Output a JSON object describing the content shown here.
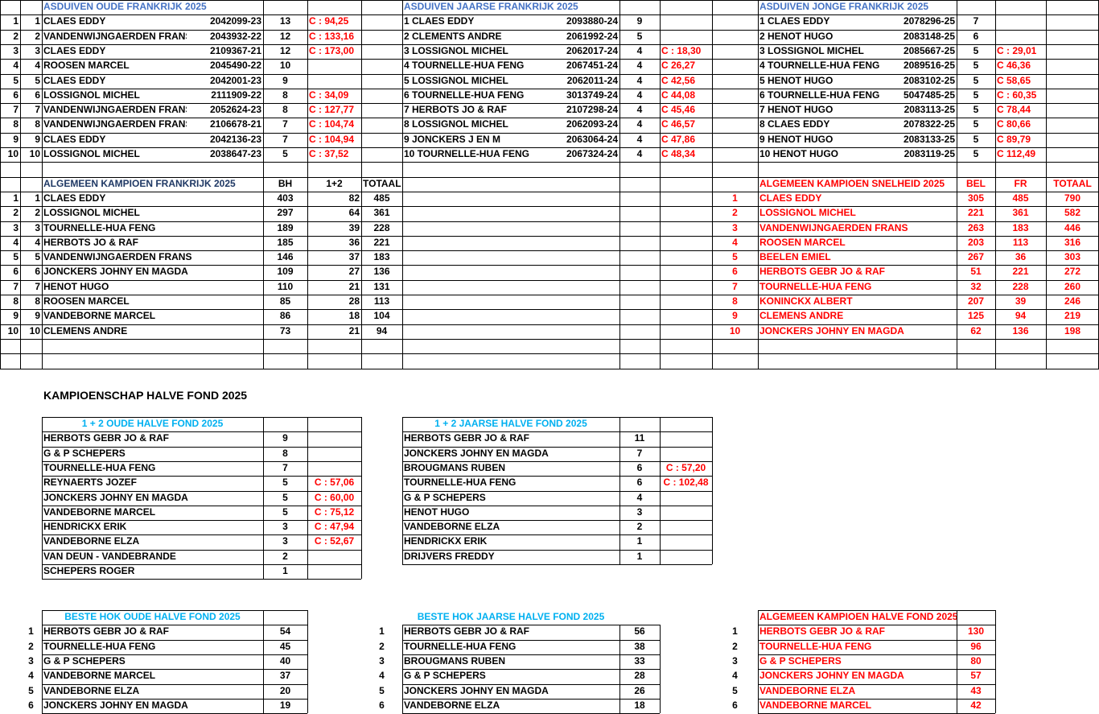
{
  "top": {
    "oude": {
      "title": "ASDUIVEN OUDE FRANKRIJK  2025",
      "rows": [
        {
          "i": "1",
          "r": "1",
          "name": "CLAES  EDDY",
          "ring": "2042099-23",
          "n": "13",
          "c": "C :   94,25"
        },
        {
          "i": "2",
          "r": "2",
          "name": "VANDENWIJNGAERDEN FRANS",
          "ring": "2043932-22",
          "n": "12",
          "c": "C : 133,16"
        },
        {
          "i": "3",
          "r": "3",
          "name": "CLAES  EDDY",
          "ring": "2109367-21",
          "n": "12",
          "c": "C : 173,00"
        },
        {
          "i": "4",
          "r": "4",
          "name": "ROOSEN MARCEL",
          "ring": "2045490-22",
          "n": "10",
          "c": ""
        },
        {
          "i": "5",
          "r": "5",
          "name": "CLAES  EDDY",
          "ring": "2042001-23",
          "n": "9",
          "c": ""
        },
        {
          "i": "6",
          "r": "6",
          "name": "LOSSIGNOL MICHEL",
          "ring": "2111909-22",
          "n": "8",
          "c": "C :   34,09"
        },
        {
          "i": "7",
          "r": "7",
          "name": "VANDENWIJNGAERDEN FRANS",
          "ring": "2052624-23",
          "n": "8",
          "c": "C : 127,77"
        },
        {
          "i": "8",
          "r": "8",
          "name": "VANDENWIJNGAERDEN FRANS",
          "ring": "2106678-21",
          "n": "7",
          "c": "C : 104,74"
        },
        {
          "i": "9",
          "r": "9",
          "name": "CLAES  EDDY",
          "ring": "2042136-23",
          "n": "7",
          "c": "C : 104,94"
        },
        {
          "i": "10",
          "r": "10",
          "name": "LOSSIGNOL MICHEL",
          "ring": "2038647-23",
          "n": "5",
          "c": "C :  37,52"
        }
      ]
    },
    "jaarse": {
      "title": "ASDUIVEN JAARSE FRANKRIJK  2025",
      "rows": [
        {
          "name": "1 CLAES  EDDY",
          "ring": "2093880-24",
          "n": "9",
          "c": ""
        },
        {
          "name": "2 CLEMENTS ANDRE",
          "ring": "2061992-24",
          "n": "5",
          "c": ""
        },
        {
          "name": "3 LOSSIGNOL MICHEL",
          "ring": "2062017-24",
          "n": "4",
          "c": "C : 18,30"
        },
        {
          "name": "4 TOURNELLE-HUA FENG",
          "ring": "2067451-24",
          "n": "4",
          "c": "C  26,27"
        },
        {
          "name": "5 LOSSIGNOL MICHEL",
          "ring": "2062011-24",
          "n": "4",
          "c": "C   42,56"
        },
        {
          "name": "6 TOURNELLE-HUA FENG",
          "ring": "3013749-24",
          "n": "4",
          "c": "C  44,08"
        },
        {
          "name": "7 HERBOTS JO &  RAF",
          "ring": "2107298-24",
          "n": "4",
          "c": "C  45,46"
        },
        {
          "name": "8 LOSSIGNOL MICHEL",
          "ring": "2062093-24",
          "n": "4",
          "c": "C  46,57"
        },
        {
          "name": "9 JONCKERS J EN M",
          "ring": "2063064-24",
          "n": "4",
          "c": "C  47,86"
        },
        {
          "name": "10 TOURNELLE-HUA FENG",
          "ring": "2067324-24",
          "n": "4",
          "c": "C  48,34"
        }
      ]
    },
    "jonge": {
      "title": "ASDUIVEN JONGE FRANKRIJK  2025",
      "rows": [
        {
          "name": "1 CLAES  EDDY",
          "ring": "2078296-25",
          "n": "7",
          "c": ""
        },
        {
          "name": "2 HENOT  HUGO",
          "ring": "2083148-25",
          "n": "6",
          "c": ""
        },
        {
          "name": "3 LOSSIGNOL MICHEL",
          "ring": "2085667-25",
          "n": "5",
          "c": "C :  29,01"
        },
        {
          "name": "4 TOURNELLE-HUA FENG",
          "ring": "2089516-25",
          "n": "5",
          "c": "C   46,36"
        },
        {
          "name": "5 HENOT  HUGO",
          "ring": "2083102-25",
          "n": "5",
          "c": "C    58,65"
        },
        {
          "name": "6 TOURNELLE-HUA FENG",
          "ring": "5047485-25",
          "n": "5",
          "c": "C : 60,35"
        },
        {
          "name": "7 HENOT  HUGO",
          "ring": "2083113-25",
          "n": "5",
          "c": "C    78,44"
        },
        {
          "name": "8 CLAES  EDDY",
          "ring": "2078322-25",
          "n": "5",
          "c": "C   80,66"
        },
        {
          "name": "9 HENOT  HUGO",
          "ring": "2083133-25",
          "n": "5",
          "c": "C    89,79"
        },
        {
          "name": "10 HENOT  HUGO",
          "ring": "2083119-25",
          "n": "5",
          "c": "C  112,49"
        }
      ]
    },
    "alg_frankrijk": {
      "title": "ALGEMEEN KAMPIOEN FRANKRIJK  2025",
      "h_bh": "BH",
      "h_12": "1+2",
      "h_totaal": "TOTAAL",
      "rows": [
        {
          "i": "1",
          "r": "1",
          "name": "CLAES  EDDY",
          "bh": "403",
          "p12": "82",
          "tot": "485"
        },
        {
          "i": "2",
          "r": "2",
          "name": "LOSSIGNOL MICHEL",
          "bh": "297",
          "p12": "64",
          "tot": "361"
        },
        {
          "i": "3",
          "r": "3",
          "name": "TOURNELLE-HUA FENG",
          "bh": "189",
          "p12": "39",
          "tot": "228"
        },
        {
          "i": "4",
          "r": "4",
          "name": "HERBOTS JO & RAF",
          "bh": "185",
          "p12": "36",
          "tot": "221"
        },
        {
          "i": "5",
          "r": "5",
          "name": "VANDENWIJNGAERDEN FRANS",
          "bh": "146",
          "p12": "37",
          "tot": "183"
        },
        {
          "i": "6",
          "r": "6",
          "name": "JONCKERS JOHNY EN MAGDA",
          "bh": "109",
          "p12": "27",
          "tot": "136"
        },
        {
          "i": "7",
          "r": "7",
          "name": "HENOT HUGO",
          "bh": "110",
          "p12": "21",
          "tot": "131"
        },
        {
          "i": "8",
          "r": "8",
          "name": "ROOSEN MARCEL",
          "bh": "85",
          "p12": "28",
          "tot": "113"
        },
        {
          "i": "9",
          "r": "9",
          "name": "VANDEBORNE MARCEL",
          "bh": "86",
          "p12": "18",
          "tot": "104"
        },
        {
          "i": "10",
          "r": "10",
          "name": "CLEMENS ANDRE",
          "bh": "73",
          "p12": "21",
          "tot": "94"
        }
      ]
    },
    "alg_snelheid": {
      "title": "ALGEMEEN KAMPIOEN SNELHEID 2025",
      "h_bel": "BEL",
      "h_fr": "FR",
      "h_totaal": "TOTAAL",
      "rows": [
        {
          "r": "1",
          "name": "CLAES  EDDY",
          "bel": "305",
          "fr": "485",
          "tot": "790"
        },
        {
          "r": "2",
          "name": "LOSSIGNOL MICHEL",
          "bel": "221",
          "fr": "361",
          "tot": "582"
        },
        {
          "r": "3",
          "name": "VANDENWIJNGAERDEN FRANS",
          "bel": "263",
          "fr": "183",
          "tot": "446"
        },
        {
          "r": "4",
          "name": "ROOSEN MARCEL",
          "bel": "203",
          "fr": "113",
          "tot": "316"
        },
        {
          "r": "5",
          "name": "BEELEN EMIEL",
          "bel": "267",
          "fr": "36",
          "tot": "303"
        },
        {
          "r": "6",
          "name": "HERBOTS GEBR JO & RAF",
          "bel": "51",
          "fr": "221",
          "tot": "272"
        },
        {
          "r": "7",
          "name": "TOURNELLE-HUA FENG",
          "bel": "32",
          "fr": "228",
          "tot": "260"
        },
        {
          "r": "8",
          "name": "KONINCKX ALBERT",
          "bel": "207",
          "fr": "39",
          "tot": "246"
        },
        {
          "r": "9",
          "name": "CLEMENS ANDRE",
          "bel": "125",
          "fr": "94",
          "tot": "219"
        },
        {
          "r": "10",
          "name": "JONCKERS JOHNY EN MAGDA",
          "bel": "62",
          "fr": "136",
          "tot": "198"
        }
      ]
    }
  },
  "section_title": "KAMPIOENSCHAP HALVE FOND 2025",
  "oude_hf": {
    "title": "1 + 2 OUDE HALVE FOND  2025",
    "rows": [
      {
        "name": "HERBOTS GEBR  JO & RAF",
        "n": "9",
        "c": ""
      },
      {
        "name": "G & P SCHEPERS",
        "n": "8",
        "c": ""
      },
      {
        "name": "TOURNELLE-HUA FENG",
        "n": "7",
        "c": ""
      },
      {
        "name": "REYNAERTS JOZEF",
        "n": "5",
        "c": "C : 57,06"
      },
      {
        "name": "JONCKERS JOHNY EN MAGDA",
        "n": "5",
        "c": "C : 60,00"
      },
      {
        "name": "VANDEBORNE MARCEL",
        "n": "5",
        "c": "C : 75,12"
      },
      {
        "name": "HENDRICKX ERIK",
        "n": "3",
        "c": "C : 47,94"
      },
      {
        "name": "VANDEBORNE ELZA",
        "n": "3",
        "c": "C : 52,67"
      },
      {
        "name": "VAN DEUN - VANDEBRANDE",
        "n": "2",
        "c": ""
      },
      {
        "name": "SCHEPERS ROGER",
        "n": "1",
        "c": ""
      }
    ]
  },
  "jaarse_hf": {
    "title": "1 + 2 JAARSE HALVE FOND 2025",
    "rows": [
      {
        "name": "HERBOTS GEBR  JO & RAF",
        "n": "11",
        "c": ""
      },
      {
        "name": "JONCKERS JOHNY EN MAGDA",
        "n": "7",
        "c": ""
      },
      {
        "name": "BROUGMANS RUBEN",
        "n": "6",
        "c": "C : 57,20"
      },
      {
        "name": "TOURNELLE-HUA FENG",
        "n": "6",
        "c": "C : 102,48"
      },
      {
        "name": "G & P SCHEPERS",
        "n": "4",
        "c": ""
      },
      {
        "name": "HENOT HUGO",
        "n": "3",
        "c": ""
      },
      {
        "name": "VANDEBORNE ELZA",
        "n": "2",
        "c": ""
      },
      {
        "name": "HENDRICKX ERIK",
        "n": "1",
        "c": ""
      },
      {
        "name": "DRIJVERS FREDDY",
        "n": "1",
        "c": ""
      }
    ]
  },
  "hok_oude": {
    "title": "BESTE HOK OUDE HALVE FOND 2025",
    "rows": [
      {
        "r": "1",
        "name": "HERBOTS GEBR  JO & RAF",
        "n": "54"
      },
      {
        "r": "2",
        "name": "TOURNELLE-HUA FENG",
        "n": "45"
      },
      {
        "r": "3",
        "name": "G & P SCHEPERS",
        "n": "40"
      },
      {
        "r": "4",
        "name": "VANDEBORNE MARCEL",
        "n": "37"
      },
      {
        "r": "5",
        "name": "VANDEBORNE ELZA",
        "n": "20"
      },
      {
        "r": "6",
        "name": "JONCKERS JOHNY EN MAGDA",
        "n": "19"
      }
    ]
  },
  "hok_jaarse": {
    "title": "BESTE HOK JAARSE HALVE FOND 2025",
    "rows": [
      {
        "r": "1",
        "name": "HERBOTS GEBR  JO & RAF",
        "n": "56"
      },
      {
        "r": "2",
        "name": "TOURNELLE-HUA FENG",
        "n": "38"
      },
      {
        "r": "3",
        "name": "BROUGMANS RUBEN",
        "n": "33"
      },
      {
        "r": "4",
        "name": "G & P SCHEPERS",
        "n": "28"
      },
      {
        "r": "5",
        "name": "JONCKERS JOHNY EN MAGDA",
        "n": "26"
      },
      {
        "r": "6",
        "name": "VANDEBORNE ELZA",
        "n": "18"
      }
    ]
  },
  "alg_hf": {
    "title": "ALGEMEEN KAMPIOEN HALVE FOND 2025",
    "rows": [
      {
        "r": "1",
        "name": "HERBOTS GEBR  JO & RAF",
        "n": "130"
      },
      {
        "r": "2",
        "name": "TOURNELLE-HUA FENG",
        "n": "96"
      },
      {
        "r": "3",
        "name": "G & P SCHEPERS",
        "n": "80"
      },
      {
        "r": "4",
        "name": "JONCKERS JOHNY EN MAGDA",
        "n": "57"
      },
      {
        "r": "5",
        "name": "VANDEBORNE ELZA",
        "n": "43"
      },
      {
        "r": "6",
        "name": "VANDEBORNE MARCEL",
        "n": "42"
      }
    ]
  },
  "colors": {
    "blue": "#4472c4",
    "navy": "#1f3864",
    "red": "#ff0000",
    "cyan": "#00b0f0",
    "grid": "#000000"
  }
}
